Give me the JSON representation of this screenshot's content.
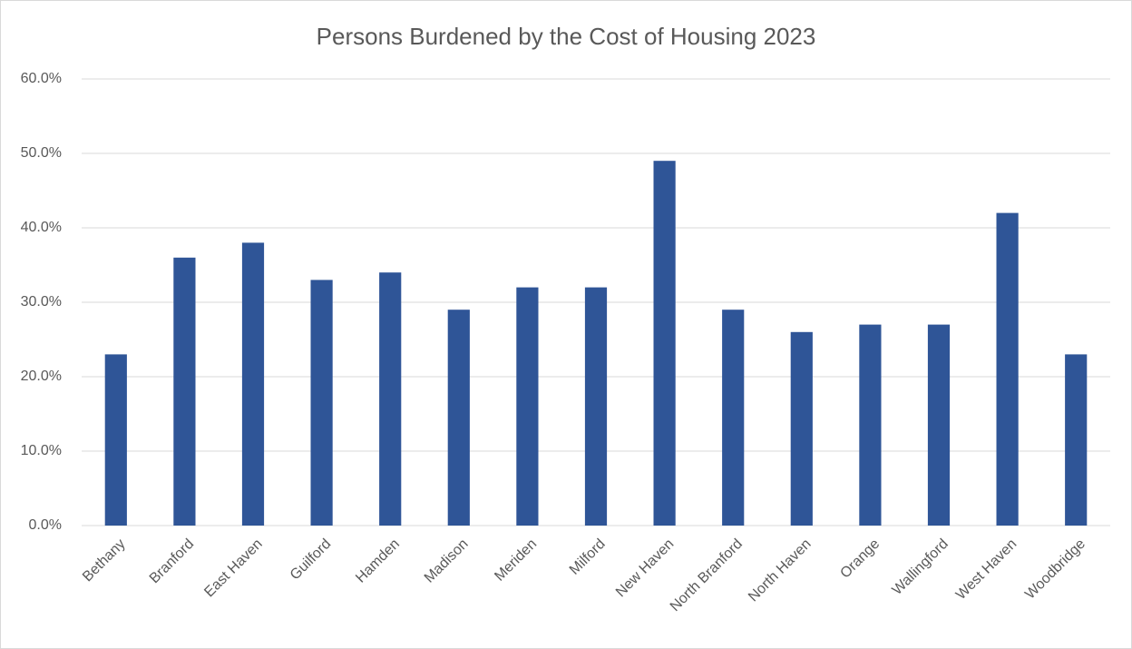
{
  "chart_data": {
    "type": "bar",
    "title": "Persons Burdened by the Cost of Housing 2023",
    "categories": [
      "Bethany",
      "Branford",
      "East Haven",
      "Guilford",
      "Hamden",
      "Madison",
      "Meriden",
      "Milford",
      "New Haven",
      "North Branford",
      "North Haven",
      "Orange",
      "Wallingford",
      "West Haven",
      "Woodbridge"
    ],
    "values": [
      23,
      36,
      38,
      33,
      34,
      29,
      32,
      32,
      49,
      29,
      26,
      27,
      27,
      42,
      23
    ],
    "color": "#2f5597",
    "ylim": [
      0,
      60
    ],
    "yticks": [
      {
        "value": 0,
        "label": "0.0%"
      },
      {
        "value": 10,
        "label": "10.0%"
      },
      {
        "value": 20,
        "label": "20.0%"
      },
      {
        "value": 30,
        "label": "30.0%"
      },
      {
        "value": 40,
        "label": "40.0%"
      },
      {
        "value": 50,
        "label": "50.0%"
      },
      {
        "value": 60,
        "label": "60.0%"
      }
    ],
    "grid": true
  }
}
